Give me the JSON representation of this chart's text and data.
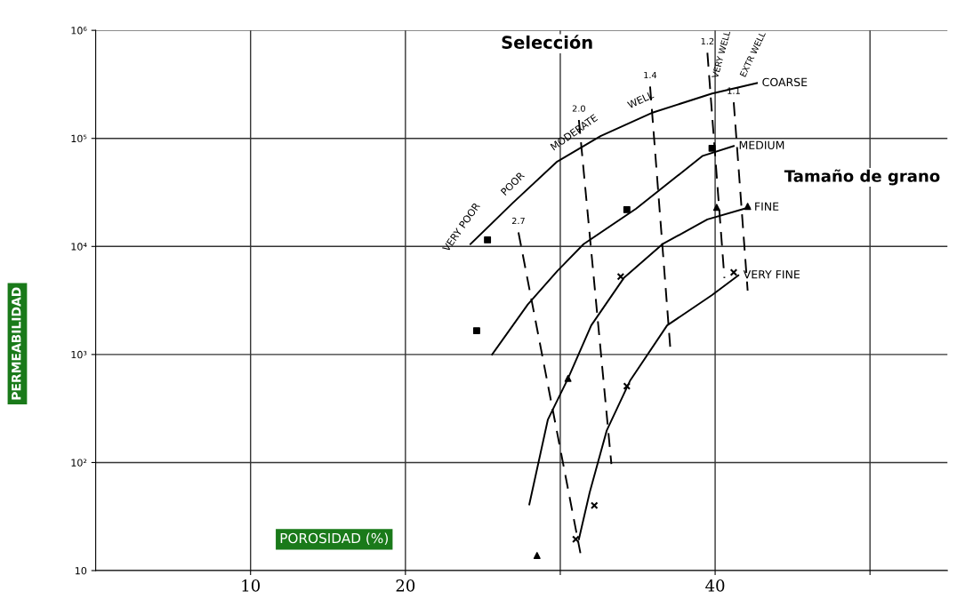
{
  "chart_data": {
    "type": "line",
    "xlabel": "POROSIDAD (%)",
    "ylabel": "PERMEABILIDAD",
    "log": "y",
    "grid": true,
    "xlim": [
      0,
      55
    ],
    "xticks": [
      10,
      20,
      {
        "value": 30,
        "label": null
      },
      40,
      {
        "value": 50,
        "label": null
      }
    ],
    "ylim": [
      10,
      1000000
    ],
    "yticks": [
      {
        "value": 10,
        "label": "10"
      },
      {
        "value": 100,
        "label": "10²"
      },
      {
        "value": 1000,
        "label": "10³"
      },
      {
        "value": 10000,
        "label": "10⁴"
      },
      {
        "value": 100000,
        "label": "10⁵"
      },
      {
        "value": 1000000,
        "label": "10⁶"
      }
    ],
    "series": [
      {
        "name": "COARSE",
        "color": "#000000",
        "line_style": "solid",
        "x": [
          24.2,
          26.9,
          29.8,
          32.6,
          36.0,
          39.8,
          42.7
        ],
        "values": [
          10500,
          25000,
          61000,
          105000,
          174000,
          260000,
          325000
        ]
      },
      {
        "name": "MEDIUM",
        "color": "#000000",
        "line_style": "solid",
        "x": [
          25.6,
          27.9,
          29.8,
          31.5,
          34.9,
          39.2,
          41.2
        ],
        "values": [
          1000,
          2900,
          5900,
          10500,
          22400,
          69000,
          85000
        ]
      },
      {
        "name": "FINE",
        "color": "#000000",
        "line_style": "solid",
        "x": [
          28.0,
          29.2,
          30.5,
          32.0,
          34.1,
          36.6,
          39.5,
          42.2
        ],
        "values": [
          41,
          250,
          600,
          1860,
          5100,
          10500,
          17800,
          23000
        ]
      },
      {
        "name": "VERY FINE",
        "color": "#000000",
        "line_style": "solid",
        "x": [
          31.2,
          31.9,
          33.0,
          34.5,
          36.9,
          39.8,
          41.5
        ],
        "values": [
          19.5,
          53,
          198,
          570,
          1860,
          3550,
          5400
        ]
      },
      {
        "name": "2.7",
        "color": "#000000",
        "line_style": "dashed",
        "x": [
          27.3,
          31.3
        ],
        "values": [
          13500,
          14.5
        ]
      },
      {
        "name": "2.0",
        "color": "#000000",
        "line_style": "dashed",
        "x": [
          31.2,
          33.3
        ],
        "values": [
          148000,
          97
        ]
      },
      {
        "name": "1.4",
        "color": "#000000",
        "line_style": "dashed",
        "x": [
          35.8,
          37.1
        ],
        "values": [
          302000,
          1170
        ]
      },
      {
        "name": "1.2",
        "color": "#000000",
        "line_style": "dashed",
        "x": [
          39.5,
          40.6
        ],
        "values": [
          620000,
          5100
        ]
      },
      {
        "name": "1.1",
        "color": "#000000",
        "line_style": "dashed",
        "x": [
          41.2,
          42.1
        ],
        "values": [
          216000,
          3900
        ]
      },
      {
        "type": "scatter",
        "marker": "square",
        "color": "#000000",
        "x": [
          24.6,
          25.3,
          34.3,
          39.8
        ],
        "values": [
          1660,
          11500,
          21900,
          81000
        ]
      },
      {
        "type": "scatter",
        "marker": "triangle",
        "color": "#000000",
        "x": [
          28.5,
          30.5,
          40.1,
          42.1
        ],
        "values": [
          13.8,
          600,
          23000,
          23500
        ]
      },
      {
        "type": "scatter",
        "marker": "cross",
        "color": "#000000",
        "x": [
          32.2,
          31.0,
          34.3,
          33.9,
          41.2
        ],
        "values": [
          40,
          19.5,
          510,
          5250,
          5750
        ]
      }
    ],
    "annotations": [
      "Selección",
      "Tamaño de grano",
      "VERY POOR",
      "POOR",
      "MODERATE",
      "WELL",
      "VERY WELL",
      "EXTR WELL"
    ]
  }
}
